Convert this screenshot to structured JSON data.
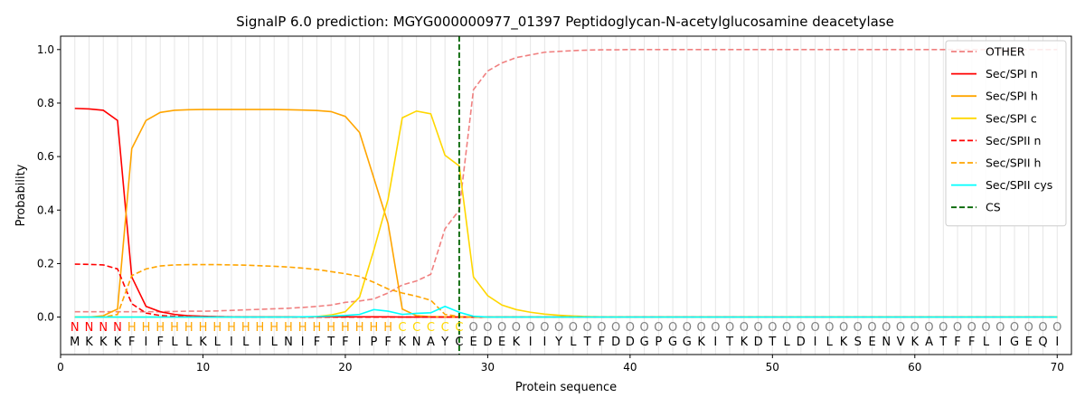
{
  "chart_data": {
    "type": "line",
    "title": "SignalP 6.0 prediction: MGYG000000977_01397 Peptidoglycan-N-acetylglucosamine deacetylase",
    "xlabel": "Protein sequence",
    "ylabel": "Probability",
    "xlim": [
      0,
      71
    ],
    "ylim": [
      -0.14,
      1.05
    ],
    "xticks": [
      0,
      10,
      20,
      30,
      40,
      50,
      60,
      70
    ],
    "yticks": [
      0.0,
      0.2,
      0.4,
      0.6,
      0.8,
      1.0
    ],
    "grid": "vertical lines at each residue",
    "legend_position": "top-right",
    "sequence": [
      "M",
      "K",
      "K",
      "K",
      "F",
      "I",
      "F",
      "L",
      "L",
      "K",
      "L",
      "I",
      "L",
      "I",
      "L",
      "N",
      "I",
      "F",
      "T",
      "F",
      "I",
      "P",
      "F",
      "K",
      "N",
      "A",
      "Y",
      "C",
      "E",
      "D",
      "E",
      "K",
      "I",
      "I",
      "Y",
      "L",
      "T",
      "F",
      "D",
      "D",
      "G",
      "P",
      "G",
      "G",
      "K",
      "I",
      "T",
      "K",
      "D",
      "T",
      "L",
      "D",
      "I",
      "L",
      "K",
      "S",
      "E",
      "N",
      "V",
      "K",
      "A",
      "T",
      "F",
      "F",
      "L",
      "I",
      "G",
      "E",
      "Q",
      "I"
    ],
    "region_labels": [
      "N",
      "N",
      "N",
      "N",
      "H",
      "H",
      "H",
      "H",
      "H",
      "H",
      "H",
      "H",
      "H",
      "H",
      "H",
      "H",
      "H",
      "H",
      "H",
      "H",
      "H",
      "H",
      "H",
      "C",
      "C",
      "C",
      "C",
      "C",
      "O",
      "O",
      "O",
      "O",
      "O",
      "O",
      "O",
      "O",
      "O",
      "O",
      "O",
      "O",
      "O",
      "O",
      "O",
      "O",
      "O",
      "O",
      "O",
      "O",
      "O",
      "O",
      "O",
      "O",
      "O",
      "O",
      "O",
      "O",
      "O",
      "O",
      "O",
      "O",
      "O",
      "O",
      "O",
      "O",
      "O",
      "O",
      "O",
      "O",
      "O",
      "O"
    ],
    "region_colors": {
      "N": "#ff0000",
      "H": "#ffa500",
      "C": "#ffd700",
      "O": "#808080"
    },
    "cleavage_site": 28,
    "series": [
      {
        "name": "OTHER",
        "color": "#f08080",
        "dash": "dashed",
        "values": [
          0.02,
          0.02,
          0.02,
          0.02,
          0.02,
          0.02,
          0.02,
          0.021,
          0.022,
          0.022,
          0.023,
          0.025,
          0.027,
          0.029,
          0.031,
          0.033,
          0.036,
          0.04,
          0.045,
          0.055,
          0.06,
          0.068,
          0.09,
          0.12,
          0.135,
          0.16,
          0.33,
          0.4,
          0.85,
          0.92,
          0.95,
          0.97,
          0.98,
          0.99,
          0.993,
          0.996,
          0.998,
          0.999,
          0.999,
          1.0,
          1.0,
          1.0,
          1.0,
          1.0,
          1.0,
          1.0,
          1.0,
          1.0,
          1.0,
          1.0,
          1.0,
          1.0,
          1.0,
          1.0,
          1.0,
          1.0,
          1.0,
          1.0,
          1.0,
          1.0,
          1.0,
          1.0,
          1.0,
          1.0,
          1.0,
          1.0,
          1.0,
          1.0,
          1.0,
          1.0
        ]
      },
      {
        "name": "Sec/SPI n",
        "color": "#ff0000",
        "dash": "solid",
        "values": [
          0.78,
          0.778,
          0.773,
          0.735,
          0.15,
          0.04,
          0.02,
          0.01,
          0.005,
          0.003,
          0.002,
          0.001,
          0.001,
          0.001,
          0.001,
          0.001,
          0.001,
          0.001,
          0.001,
          0.001,
          0.001,
          0.001,
          0.001,
          0,
          0,
          0,
          0,
          0,
          0,
          0,
          0,
          0,
          0,
          0,
          0,
          0,
          0,
          0,
          0,
          0,
          0,
          0,
          0,
          0,
          0,
          0,
          0,
          0,
          0,
          0,
          0,
          0,
          0,
          0,
          0,
          0,
          0,
          0,
          0,
          0,
          0,
          0,
          0,
          0,
          0,
          0,
          0,
          0,
          0,
          0
        ]
      },
      {
        "name": "Sec/SPI h",
        "color": "#ffa500",
        "dash": "solid",
        "values": [
          0.0,
          0.0,
          0.005,
          0.03,
          0.63,
          0.735,
          0.765,
          0.773,
          0.775,
          0.776,
          0.776,
          0.776,
          0.776,
          0.776,
          0.776,
          0.775,
          0.774,
          0.772,
          0.768,
          0.75,
          0.69,
          0.52,
          0.35,
          0.03,
          0.005,
          0.002,
          0.001,
          0,
          0,
          0,
          0,
          0,
          0,
          0,
          0,
          0,
          0,
          0,
          0,
          0,
          0,
          0,
          0,
          0,
          0,
          0,
          0,
          0,
          0,
          0,
          0,
          0,
          0,
          0,
          0,
          0,
          0,
          0,
          0,
          0,
          0,
          0,
          0,
          0,
          0,
          0,
          0,
          0,
          0,
          0
        ]
      },
      {
        "name": "Sec/SPI c",
        "color": "#ffd700",
        "dash": "solid",
        "values": [
          0,
          0,
          0,
          0,
          0,
          0,
          0,
          0,
          0,
          0,
          0,
          0,
          0,
          0,
          0,
          0,
          0,
          0.002,
          0.008,
          0.02,
          0.075,
          0.25,
          0.44,
          0.745,
          0.77,
          0.76,
          0.605,
          0.565,
          0.15,
          0.08,
          0.045,
          0.028,
          0.018,
          0.011,
          0.007,
          0.004,
          0.002,
          0.001,
          0.001,
          0,
          0,
          0,
          0,
          0,
          0,
          0,
          0,
          0,
          0,
          0,
          0,
          0,
          0,
          0,
          0,
          0,
          0,
          0,
          0,
          0,
          0,
          0,
          0,
          0,
          0,
          0,
          0,
          0,
          0,
          0
        ]
      },
      {
        "name": "Sec/SPII n",
        "color": "#ff0000",
        "dash": "dashed",
        "values": [
          0.198,
          0.197,
          0.195,
          0.18,
          0.05,
          0.015,
          0.006,
          0.003,
          0.002,
          0.001,
          0.001,
          0.001,
          0,
          0,
          0,
          0,
          0,
          0,
          0,
          0,
          0,
          0,
          0,
          0,
          0,
          0,
          0,
          0,
          0,
          0,
          0,
          0,
          0,
          0,
          0,
          0,
          0,
          0,
          0,
          0,
          0,
          0,
          0,
          0,
          0,
          0,
          0,
          0,
          0,
          0,
          0,
          0,
          0,
          0,
          0,
          0,
          0,
          0,
          0,
          0,
          0,
          0,
          0,
          0,
          0,
          0,
          0,
          0,
          0,
          0
        ]
      },
      {
        "name": "Sec/SPII h",
        "color": "#ffa500",
        "dash": "dashed",
        "values": [
          0.0,
          0.0,
          0.0,
          0.01,
          0.155,
          0.18,
          0.191,
          0.195,
          0.196,
          0.196,
          0.196,
          0.195,
          0.194,
          0.192,
          0.19,
          0.187,
          0.183,
          0.178,
          0.17,
          0.162,
          0.152,
          0.13,
          0.105,
          0.09,
          0.078,
          0.063,
          0.01,
          0.002,
          0,
          0,
          0,
          0,
          0,
          0,
          0,
          0,
          0,
          0,
          0,
          0,
          0,
          0,
          0,
          0,
          0,
          0,
          0,
          0,
          0,
          0,
          0,
          0,
          0,
          0,
          0,
          0,
          0,
          0,
          0,
          0,
          0,
          0,
          0,
          0,
          0,
          0,
          0,
          0,
          0,
          0
        ]
      },
      {
        "name": "Sec/SPII cys",
        "color": "#00ffff",
        "dash": "solid",
        "values": [
          0,
          0,
          0,
          0,
          0,
          0,
          0,
          0,
          0,
          0,
          0,
          0,
          0,
          0,
          0,
          0,
          0.001,
          0.002,
          0.004,
          0.006,
          0.01,
          0.028,
          0.022,
          0.01,
          0.014,
          0.016,
          0.04,
          0.018,
          0.003,
          0,
          0,
          0,
          0,
          0,
          0,
          0,
          0,
          0,
          0,
          0,
          0,
          0,
          0,
          0,
          0,
          0,
          0,
          0,
          0,
          0,
          0,
          0,
          0,
          0,
          0,
          0,
          0,
          0,
          0,
          0,
          0,
          0,
          0,
          0,
          0,
          0,
          0,
          0,
          0,
          0
        ]
      },
      {
        "name": "CS",
        "color": "#006400",
        "dash": "dashed",
        "values": []
      }
    ]
  }
}
